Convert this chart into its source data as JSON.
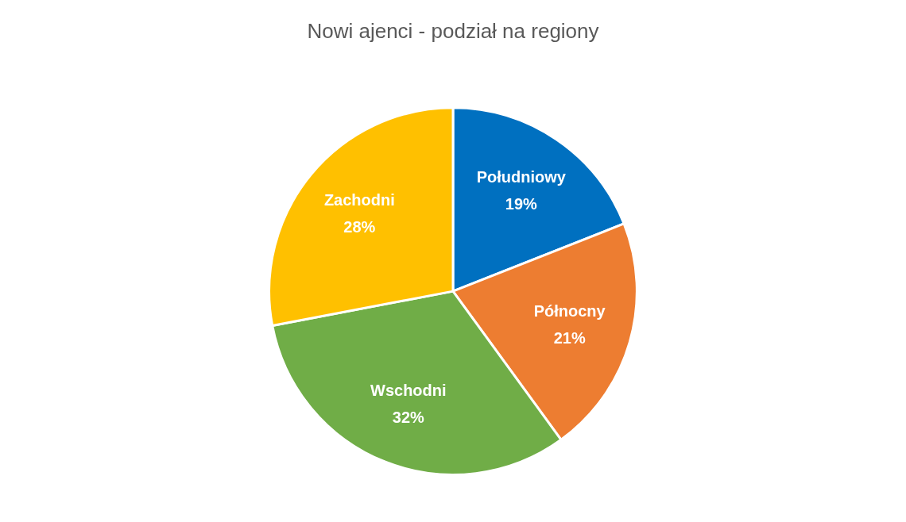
{
  "chart_data": {
    "type": "pie",
    "title": "Nowi ajenci - podział na regiony",
    "categories": [
      "Południowy",
      "Północny",
      "Wschodni",
      "Zachodni"
    ],
    "values": [
      19,
      21,
      32,
      28
    ],
    "value_labels": [
      "19%",
      "21%",
      "32%",
      "28%"
    ],
    "colors": [
      "#0070c0",
      "#ed7d31",
      "#70ad47",
      "#ffc000"
    ],
    "legend": false
  }
}
